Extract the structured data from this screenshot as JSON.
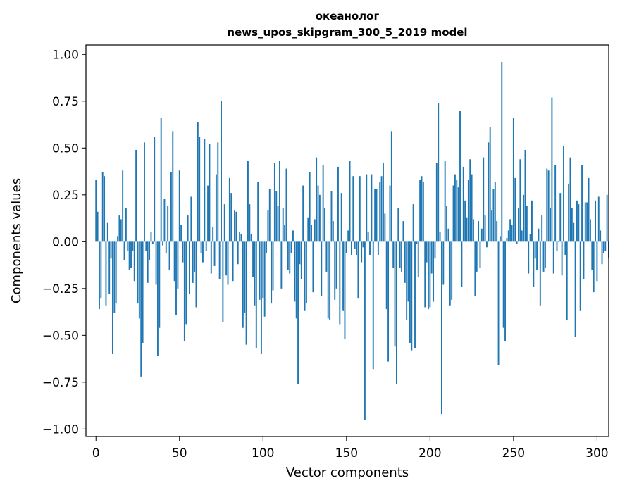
{
  "chart_data": {
    "type": "bar",
    "title": "океанолог\nnews_upos_skipgram_300_5_2019 model",
    "xlabel": "Vector components",
    "ylabel": "Components values",
    "xlim": [
      -6,
      307
    ],
    "ylim": [
      -1.04,
      1.05
    ],
    "xticks": [
      0,
      50,
      100,
      150,
      200,
      250,
      300
    ],
    "yticks": [
      -1.0,
      -0.75,
      -0.5,
      -0.25,
      0.0,
      0.25,
      0.5,
      0.75,
      1.0
    ],
    "yticklabels": [
      "−1.00",
      "−0.75",
      "−0.50",
      "−0.25",
      "0.00",
      "0.25",
      "0.50",
      "0.75",
      "1.00"
    ],
    "color": "#1f77b4",
    "values": [
      0.33,
      0.16,
      -0.36,
      -0.3,
      0.37,
      0.35,
      -0.34,
      0.1,
      -0.28,
      -0.09,
      -0.6,
      -0.38,
      -0.33,
      0.03,
      0.14,
      0.12,
      0.38,
      -0.1,
      0.18,
      -0.05,
      -0.15,
      -0.14,
      -0.05,
      -0.21,
      0.49,
      -0.33,
      -0.41,
      -0.72,
      -0.54,
      0.53,
      -0.05,
      -0.22,
      -0.1,
      0.05,
      -0.01,
      0.56,
      -0.23,
      -0.61,
      -0.46,
      0.66,
      -0.02,
      0.23,
      -0.06,
      0.19,
      -0.15,
      0.37,
      0.59,
      -0.21,
      -0.39,
      -0.25,
      0.38,
      0.09,
      -0.11,
      -0.53,
      -0.44,
      0.14,
      -0.28,
      0.24,
      -0.22,
      -0.16,
      -0.35,
      0.64,
      0.56,
      -0.06,
      -0.11,
      0.55,
      -0.05,
      0.3,
      0.52,
      -0.17,
      0.08,
      -0.13,
      0.36,
      0.53,
      -0.2,
      0.75,
      -0.43,
      0.2,
      -0.18,
      -0.23,
      0.34,
      0.26,
      -0.21,
      0.17,
      0.16,
      -0.12,
      0.05,
      0.04,
      -0.46,
      -0.38,
      -0.55,
      0.43,
      0.2,
      0.04,
      -0.19,
      -0.34,
      -0.57,
      0.32,
      -0.31,
      -0.6,
      -0.3,
      -0.4,
      -0.06,
      0.17,
      0.28,
      -0.33,
      -0.26,
      0.42,
      0.27,
      0.19,
      0.43,
      -0.25,
      0.18,
      0.09,
      0.39,
      -0.15,
      -0.17,
      -0.06,
      0.06,
      -0.32,
      -0.41,
      -0.76,
      -0.12,
      -0.2,
      0.3,
      -0.37,
      -0.33,
      0.13,
      0.37,
      0.09,
      -0.27,
      0.12,
      0.45,
      0.3,
      0.25,
      -0.29,
      0.41,
      0.18,
      -0.16,
      -0.41,
      -0.42,
      0.27,
      0.11,
      -0.31,
      -0.25,
      0.4,
      -0.44,
      0.26,
      -0.37,
      -0.52,
      -0.06,
      0.06,
      0.43,
      -0.07,
      0.35,
      -0.04,
      -0.07,
      -0.3,
      0.35,
      -0.11,
      -0.03,
      -0.95,
      0.36,
      0.05,
      -0.07,
      0.36,
      -0.68,
      0.28,
      0.28,
      -0.07,
      0.32,
      0.35,
      0.42,
      0.15,
      -0.36,
      -0.64,
      0.3,
      0.59,
      -0.14,
      -0.56,
      -0.76,
      0.18,
      -0.14,
      -0.16,
      0.11,
      -0.22,
      -0.42,
      -0.32,
      -0.54,
      -0.58,
      0.2,
      -0.57,
      -0.01,
      -0.19,
      0.33,
      0.35,
      0.32,
      -0.35,
      -0.11,
      -0.36,
      -0.35,
      -0.17,
      -0.32,
      -0.09,
      0.42,
      0.74,
      0.05,
      -0.92,
      -0.23,
      0.43,
      0.19,
      0.07,
      -0.34,
      -0.31,
      0.3,
      0.36,
      0.33,
      0.29,
      0.7,
      -0.24,
      0.4,
      0.22,
      0.13,
      0.33,
      0.44,
      0.36,
      0.12,
      -0.29,
      -0.16,
      0.11,
      -0.14,
      0.07,
      0.45,
      0.14,
      -0.03,
      0.53,
      0.61,
      0.17,
      0.28,
      0.32,
      0.11,
      -0.66,
      0.03,
      0.96,
      -0.46,
      -0.53,
      0.02,
      0.06,
      0.12,
      0.09,
      0.66,
      0.34,
      -0.01,
      0.18,
      0.44,
      0.06,
      0.25,
      0.49,
      0.19,
      -0.17,
      0.04,
      0.22,
      -0.24,
      -0.09,
      -0.15,
      0.07,
      -0.34,
      0.14,
      -0.16,
      -0.14,
      0.39,
      0.38,
      0.18,
      0.77,
      -0.17,
      0.41,
      -0.05,
      0.0,
      0.26,
      -0.18,
      0.51,
      -0.07,
      -0.42,
      0.31,
      0.45,
      0.18,
      0.1,
      -0.51,
      0.22,
      0.2,
      -0.37,
      0.41,
      -0.2,
      0.21,
      0.21,
      0.34,
      0.12,
      -0.15,
      -0.27,
      0.22,
      -0.21,
      0.24,
      0.06,
      -0.12,
      -0.06,
      -0.05,
      0.25,
      -0.09
    ]
  }
}
